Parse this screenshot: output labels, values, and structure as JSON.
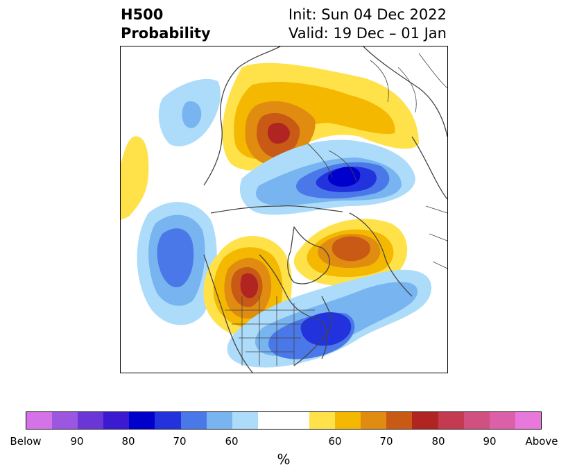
{
  "title": {
    "left_line1": "H500",
    "left_line2": "Probability",
    "right_line1": "Init: Sun 04 Dec 2022",
    "right_line2": "Valid: 19 Dec – 01 Jan"
  },
  "colorbar": {
    "below_colors": [
      "#d473e8",
      "#9b57e0",
      "#6a36d6",
      "#3b1ad2",
      "#0000cc",
      "#2233dd",
      "#4a78e8",
      "#78b4f0",
      "#acdcfa"
    ],
    "neutral_color": "#ffffff",
    "above_colors": [
      "#ffe24a",
      "#f5b800",
      "#e08c10",
      "#c85a16",
      "#b02422",
      "#c43a50",
      "#d05080",
      "#dc60a8",
      "#e878dc"
    ],
    "ticks": [
      "Below",
      "90",
      "80",
      "70",
      "60",
      "60",
      "70",
      "80",
      "90",
      "Above"
    ],
    "unit": "%"
  },
  "map": {
    "land_boundary_color": "#444444",
    "probability_regions": [
      {
        "name": "above-normal-west-north-america",
        "category": "Above",
        "peak_percent": 80
      },
      {
        "name": "above-normal-north-atlantic",
        "category": "Above",
        "peak_percent": 70
      },
      {
        "name": "above-normal-northern-eurasia",
        "category": "Above",
        "peak_percent": 80
      },
      {
        "name": "above-normal-north-pacific-west",
        "category": "Above",
        "peak_percent": 60
      },
      {
        "name": "below-normal-arctic-canada",
        "category": "Below",
        "peak_percent": 80
      },
      {
        "name": "below-normal-eastern-us",
        "category": "Below",
        "peak_percent": 80
      },
      {
        "name": "below-normal-north-pacific",
        "category": "Below",
        "peak_percent": 70
      },
      {
        "name": "below-normal-east-asia",
        "category": "Below",
        "peak_percent": 70
      }
    ]
  }
}
